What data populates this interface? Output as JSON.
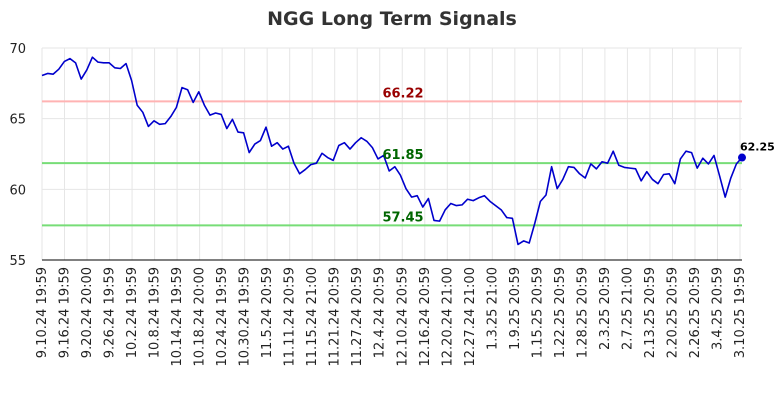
{
  "chart_data": {
    "type": "line",
    "title": "NGG Long Term Signals",
    "xlabel": "",
    "ylabel": "",
    "ylim": [
      55,
      70
    ],
    "yticks": [
      55,
      60,
      65,
      70
    ],
    "grid": true,
    "x_tick_labels": [
      "9.10.24 19:59",
      "9.16.24 19:59",
      "9.20.24 20:00",
      "9.26.24 19:59",
      "10.2.24 19:59",
      "10.8.24 19:59",
      "10.14.24 19:59",
      "10.18.24 20:00",
      "10.24.24 19:59",
      "10.30.24 19:59",
      "11.5.24 20:59",
      "11.11.24 20:59",
      "11.15.24 21:00",
      "11.21.24 20:59",
      "11.27.24 20:59",
      "12.4.24 20:59",
      "12.10.24 20:59",
      "12.16.24 20:59",
      "12.20.24 21:00",
      "12.27.24 21:00",
      "1.3.25 21:00",
      "1.9.25 20:59",
      "1.15.25 20:59",
      "1.22.25 20:59",
      "1.28.25 20:59",
      "2.3.25 20:59",
      "2.7.25 21:00",
      "2.13.25 20:59",
      "2.20.25 20:59",
      "2.26.25 20:59",
      "3.4.25 20:59",
      "3.10.25 19:59"
    ],
    "series": [
      {
        "color": "#0000cc",
        "values": [
          68.05,
          68.2,
          68.15,
          68.5,
          69.05,
          69.25,
          68.95,
          67.8,
          68.45,
          69.35,
          69.0,
          68.95,
          68.95,
          68.6,
          68.55,
          68.9,
          67.7,
          65.95,
          65.45,
          64.45,
          64.85,
          64.6,
          64.65,
          65.15,
          65.8,
          67.2,
          67.05,
          66.15,
          66.9,
          65.95,
          65.25,
          65.4,
          65.3,
          64.3,
          64.95,
          64.05,
          64.0,
          62.6,
          63.2,
          63.45,
          64.4,
          63.05,
          63.3,
          62.85,
          63.05,
          61.85,
          61.1,
          61.4,
          61.75,
          61.85,
          62.55,
          62.25,
          62.05,
          63.1,
          63.3,
          62.85,
          63.3,
          63.65,
          63.4,
          62.95,
          62.15,
          62.4,
          61.3,
          61.6,
          61.0,
          60.05,
          59.45,
          59.55,
          58.75,
          59.35,
          57.8,
          57.75,
          58.55,
          59.0,
          58.85,
          58.9,
          59.3,
          59.2,
          59.4,
          59.55,
          59.15,
          58.85,
          58.55,
          58.0,
          57.95,
          56.1,
          56.35,
          56.2,
          57.6,
          59.15,
          59.6,
          61.6,
          60.05,
          60.7,
          61.6,
          61.55,
          61.1,
          60.8,
          61.8,
          61.45,
          61.95,
          61.85,
          62.7,
          61.7,
          61.55,
          61.5,
          61.45,
          60.6,
          61.25,
          60.7,
          60.4,
          61.05,
          61.1,
          60.4,
          62.15,
          62.7,
          62.6,
          61.5,
          62.2,
          61.8,
          62.4,
          60.95,
          59.45,
          60.8,
          61.8,
          62.25
        ]
      }
    ],
    "levels": [
      {
        "value": 66.22,
        "label": "66.22",
        "line_color": "#ffb3b3",
        "text_color": "#990000"
      },
      {
        "value": 61.85,
        "label": "61.85",
        "line_color": "#77dd77",
        "text_color": "#006600"
      },
      {
        "value": 57.45,
        "label": "57.45",
        "line_color": "#77dd77",
        "text_color": "#006600"
      }
    ],
    "last_value_label": "62.25"
  }
}
